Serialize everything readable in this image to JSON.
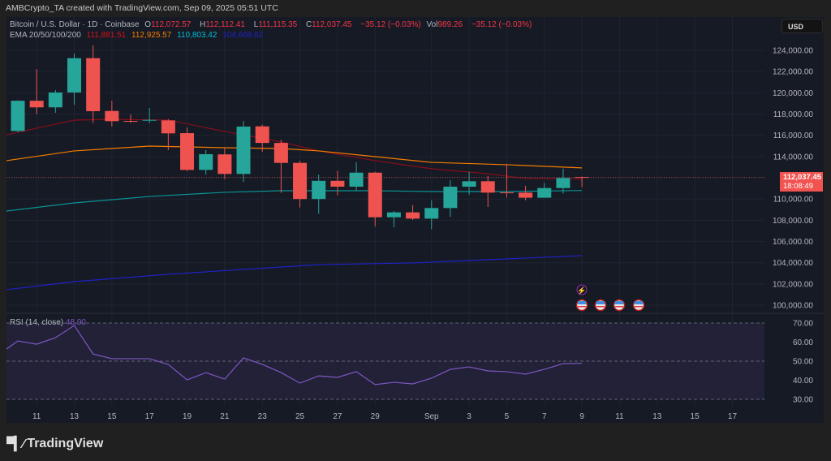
{
  "credit": "AMBCrypto_TA created with TradingView.com, Sep 09, 2025 05:51 UTC",
  "symbol": {
    "name": "Bitcoin / U.S. Dollar · 1D · Coinbase",
    "o_label": "O",
    "o": "112,072.57",
    "h_label": "H",
    "h": "112,112.41",
    "l_label": "L",
    "l": "111,115.35",
    "c_label": "C",
    "c": "112,037.45",
    "change": "−35.12 (−0.03%)",
    "vol_label": "Vol",
    "vol": "989.26",
    "vol_change": "−35.12 (−0.03%)"
  },
  "ema": {
    "label": "EMA 20/50/100/200",
    "ema20": "111,881.51",
    "ema50": "112,925.57",
    "ema100": "110,803.42",
    "ema200": "104,668.62"
  },
  "currency": "USD",
  "last_price": {
    "value": "112,037.45",
    "countdown": "18:08:49"
  },
  "rsi": {
    "label": "RSI (14, close)",
    "value": "48.90"
  },
  "price_ticks": [
    "124,000.00",
    "122,000.00",
    "120,000.00",
    "118,000.00",
    "116,000.00",
    "114,000.00",
    "112,000.00",
    "110,000.00",
    "108,000.00",
    "106,000.00",
    "104,000.00",
    "102,000.00",
    "100,000.00"
  ],
  "rsi_ticks": [
    "70.00",
    "60.00",
    "50.00",
    "40.00",
    "30.00"
  ],
  "date_ticks": [
    "11",
    "13",
    "15",
    "17",
    "19",
    "21",
    "23",
    "25",
    "27",
    "29",
    "Sep",
    "3",
    "5",
    "7",
    "9",
    "11",
    "13",
    "15",
    "17"
  ],
  "logo": "TradingView",
  "colors": {
    "up": "#26a69a",
    "down": "#ef5350",
    "ema20": "#880e1a",
    "ema50": "#f57c00",
    "ema100": "#0a9396",
    "ema200": "#1e22c8",
    "rsi": "#7e57c2",
    "background": "#161a25"
  },
  "icons": [
    "lightning-event-icon",
    "us-flag-event-icon",
    "us-flag-event-icon",
    "us-flag-event-icon",
    "us-flag-event-icon"
  ],
  "chart_data": {
    "type": "candlestick",
    "interval": "1D",
    "first_date": "2025-08-10",
    "candles": [
      [
        116400,
        119300,
        116300,
        119250
      ],
      [
        119250,
        122240,
        117990,
        118630
      ],
      [
        118630,
        120260,
        118120,
        120030
      ],
      [
        120030,
        123700,
        118860,
        123260
      ],
      [
        123260,
        124480,
        117150,
        118270
      ],
      [
        118290,
        119260,
        116820,
        117330
      ],
      [
        117350,
        117960,
        117150,
        117300
      ],
      [
        117400,
        118570,
        117150,
        117450
      ],
      [
        117400,
        117530,
        114600,
        116180
      ],
      [
        116200,
        116720,
        112640,
        112740
      ],
      [
        112740,
        114600,
        112300,
        114220
      ],
      [
        114200,
        114780,
        111870,
        112360
      ],
      [
        112360,
        117350,
        111600,
        116820
      ],
      [
        116840,
        117000,
        114440,
        115280
      ],
      [
        115280,
        115570,
        110570,
        113400
      ],
      [
        113400,
        113600,
        109200,
        110000
      ],
      [
        110000,
        112300,
        108620,
        111710
      ],
      [
        111710,
        112640,
        110340,
        111160
      ],
      [
        111160,
        113450,
        110780,
        112480
      ],
      [
        112480,
        112560,
        107420,
        108280
      ],
      [
        108280,
        108870,
        107340,
        108740
      ],
      [
        108740,
        109430,
        108030,
        108150
      ],
      [
        108150,
        109880,
        107160,
        109150
      ],
      [
        109150,
        111750,
        108310,
        111160
      ],
      [
        111160,
        112560,
        110400,
        111670
      ],
      [
        111670,
        112180,
        109250,
        110600
      ],
      [
        110620,
        113320,
        110140,
        110600
      ],
      [
        110600,
        111240,
        109880,
        110120
      ],
      [
        110120,
        111510,
        110120,
        111030
      ],
      [
        111030,
        112870,
        110500,
        111980
      ],
      [
        112072.57,
        112112.41,
        111115.35,
        112037.45
      ]
    ],
    "ema_series": [
      {
        "name": "EMA 20",
        "points": [
          [
            -1,
            116050
          ],
          [
            3,
            117430
          ],
          [
            5,
            117500
          ],
          [
            8,
            117430
          ],
          [
            11,
            116360
          ],
          [
            14,
            115370
          ],
          [
            16,
            114530
          ],
          [
            19,
            113610
          ],
          [
            22,
            112850
          ],
          [
            25,
            112380
          ],
          [
            27,
            111930
          ],
          [
            30,
            111881.51
          ]
        ]
      },
      {
        "name": "EMA 50",
        "points": [
          [
            -1,
            113610
          ],
          [
            3,
            114530
          ],
          [
            7,
            114980
          ],
          [
            11,
            114830
          ],
          [
            14,
            114750
          ],
          [
            16,
            114530
          ],
          [
            19,
            113990
          ],
          [
            22,
            113450
          ],
          [
            26,
            113230
          ],
          [
            30,
            112925.57
          ]
        ]
      },
      {
        "name": "EMA 100",
        "points": [
          [
            -1,
            108870
          ],
          [
            3,
            109630
          ],
          [
            7,
            110240
          ],
          [
            11,
            110630
          ],
          [
            14,
            110780
          ],
          [
            19,
            110780
          ],
          [
            22,
            110700
          ],
          [
            26,
            110700
          ],
          [
            30,
            110803.42
          ]
        ]
      },
      {
        "name": "EMA 200",
        "points": [
          [
            -1,
            101460
          ],
          [
            3,
            102220
          ],
          [
            8,
            102910
          ],
          [
            12,
            103370
          ],
          [
            16,
            103820
          ],
          [
            21,
            103980
          ],
          [
            25,
            104280
          ],
          [
            30,
            104668.62
          ]
        ]
      }
    ],
    "rsi_values": [
      56.4,
      60.6,
      58.9,
      62.3,
      68.7,
      53.8,
      51.3,
      51.3,
      51.3,
      48.3,
      40.2,
      44.0,
      40.6,
      51.7,
      48.3,
      44.0,
      38.5,
      42.3,
      41.5,
      44.5,
      37.7,
      38.9,
      38.1,
      41.1,
      45.7,
      47.0,
      44.9,
      44.5,
      43.2,
      45.7,
      48.7,
      48.9
    ],
    "rsi_first_date": "2025-08-09",
    "ylim": [
      99000,
      126000
    ],
    "rsi_levels": [
      70,
      50,
      30
    ]
  }
}
